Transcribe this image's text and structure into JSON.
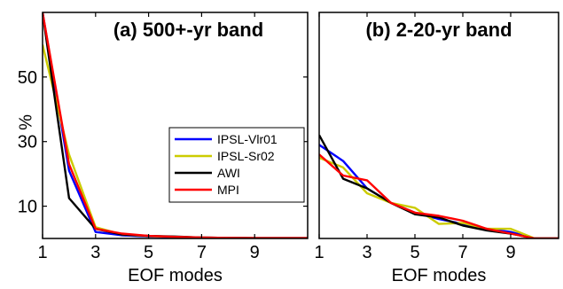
{
  "ylabel": "%",
  "chart_data": [
    {
      "type": "line",
      "title": "(a) 500+-yr band",
      "xlabel": "EOF modes",
      "ylabel": "%",
      "xlim": [
        1,
        11
      ],
      "ylim": [
        0,
        70
      ],
      "xticks": [
        "1",
        "3",
        "5",
        "7",
        "9"
      ],
      "yticks": [
        "10",
        "30",
        "50"
      ],
      "grid": false,
      "legend_position": "upper-right",
      "x": [
        1,
        2,
        3,
        4,
        5,
        6,
        7,
        8,
        9,
        10,
        11
      ],
      "series": [
        {
          "name": "IPSL-Vlr01",
          "color": "#0000ff",
          "values": [
            75,
            21,
            2.0,
            1.0,
            0.6,
            0.4,
            0.3,
            0.2,
            0.1,
            0.1,
            0.1
          ]
        },
        {
          "name": "IPSL-Sr02",
          "color": "#cccc00",
          "values": [
            60,
            26,
            3.5,
            1.2,
            0.7,
            0.5,
            0.3,
            0.2,
            0.1,
            0.1,
            0.1
          ]
        },
        {
          "name": "AWI",
          "color": "#000000",
          "values": [
            76,
            12.5,
            3.0,
            1.2,
            0.8,
            0.6,
            0.3,
            0.2,
            0.1,
            0.1,
            0.1
          ]
        },
        {
          "name": "MPI",
          "color": "#ff0000",
          "values": [
            70,
            23,
            3.0,
            1.5,
            0.8,
            0.5,
            0.3,
            0.2,
            0.1,
            0.1,
            0.1
          ]
        }
      ]
    },
    {
      "type": "line",
      "title": "(b) 2-20-yr band",
      "xlabel": "EOF modes",
      "ylabel": "",
      "xlim": [
        1,
        11
      ],
      "ylim": [
        0,
        70
      ],
      "xticks": [
        "1",
        "3",
        "5",
        "7",
        "9"
      ],
      "yticks": [],
      "grid": false,
      "x": [
        1,
        2,
        3,
        4,
        5,
        6,
        7,
        8,
        9,
        10,
        11
      ],
      "series": [
        {
          "name": "IPSL-Vlr01",
          "color": "#0000ff",
          "values": [
            29,
            24,
            15.5,
            11,
            8,
            6,
            4.5,
            3,
            2,
            0,
            0
          ]
        },
        {
          "name": "IPSL-Sr02",
          "color": "#cccc00",
          "values": [
            25,
            22,
            14,
            11,
            9.5,
            4.5,
            4.8,
            3,
            3,
            0,
            0
          ]
        },
        {
          "name": "AWI",
          "color": "#000000",
          "values": [
            32,
            18.5,
            15.5,
            11,
            7.5,
            6.5,
            4,
            2.5,
            1.5,
            0,
            0
          ]
        },
        {
          "name": "MPI",
          "color": "#ff0000",
          "values": [
            26,
            19.5,
            18,
            11,
            8,
            7,
            5.5,
            3,
            1.5,
            0,
            0
          ]
        }
      ]
    }
  ]
}
